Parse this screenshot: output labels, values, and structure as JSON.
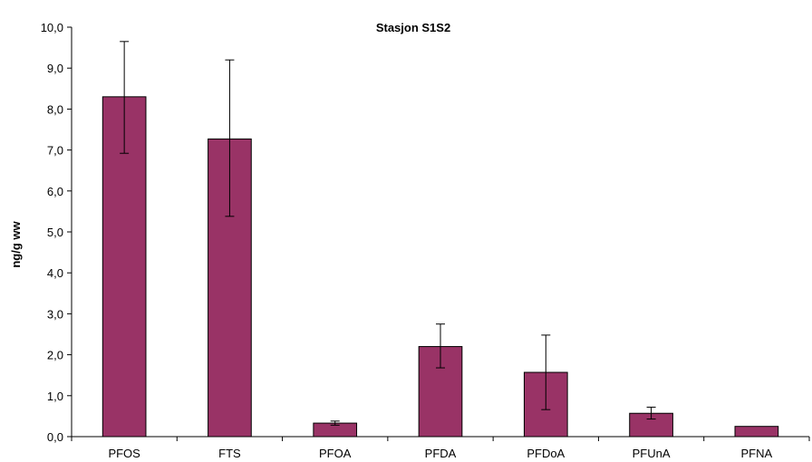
{
  "chart_data": {
    "type": "bar",
    "title": "Stasjon S1S2",
    "xlabel": "",
    "ylabel": "ng/g ww",
    "categories": [
      "PFOS",
      "FTS",
      "PFOA",
      "PFDA",
      "PFDoA",
      "PFUnA",
      "PFNA"
    ],
    "values": [
      8.3,
      7.27,
      0.33,
      2.2,
      1.57,
      0.57,
      0.25
    ],
    "error_low": [
      6.92,
      5.38,
      0.28,
      1.68,
      0.66,
      0.43,
      null
    ],
    "error_high": [
      9.65,
      9.2,
      0.38,
      2.75,
      2.48,
      0.72,
      null
    ],
    "ylim": [
      0,
      10
    ],
    "yticks": [
      "0,0",
      "1,0",
      "2,0",
      "3,0",
      "4,0",
      "5,0",
      "6,0",
      "7,0",
      "8,0",
      "9,0",
      "10,0"
    ],
    "grid": false,
    "legend": "none",
    "bar_color": "#993366"
  }
}
